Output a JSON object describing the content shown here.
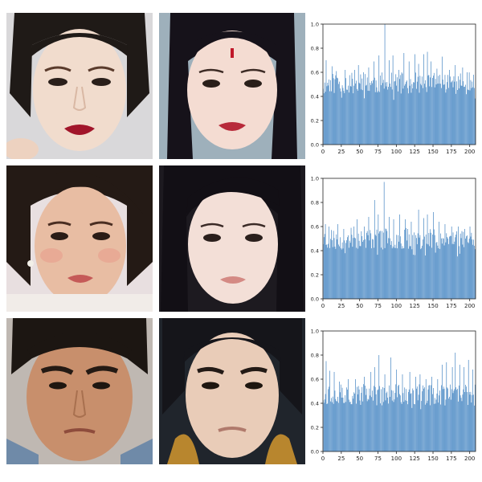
{
  "chart_data": [
    {
      "type": "bar",
      "x_ticks": [
        0,
        25,
        50,
        75,
        100,
        125,
        150,
        175,
        200
      ],
      "y_ticks": [
        "0.0",
        "0.2",
        "0.4",
        "0.6",
        "0.8",
        "1.0"
      ],
      "xlim": [
        0,
        208
      ],
      "ylim": [
        0,
        1.0
      ],
      "bar_color": "#3a7ebf",
      "n_bars": 208,
      "baseline": 0.51,
      "spread": 0.09,
      "peaks": [
        [
          4,
          0.7
        ],
        [
          12,
          0.65
        ],
        [
          18,
          0.61
        ],
        [
          30,
          0.62
        ],
        [
          43,
          0.62
        ],
        [
          48,
          0.66
        ],
        [
          55,
          0.6
        ],
        [
          62,
          0.64
        ],
        [
          69,
          0.69
        ],
        [
          76,
          0.74
        ],
        [
          84,
          1.0
        ],
        [
          90,
          0.7
        ],
        [
          95,
          0.74
        ],
        [
          103,
          0.62
        ],
        [
          110,
          0.76
        ],
        [
          117,
          0.69
        ],
        [
          125,
          0.75
        ],
        [
          130,
          0.67
        ],
        [
          137,
          0.75
        ],
        [
          142,
          0.77
        ],
        [
          147,
          0.69
        ],
        [
          155,
          0.63
        ],
        [
          162,
          0.73
        ],
        [
          172,
          0.62
        ],
        [
          180,
          0.66
        ],
        [
          190,
          0.64
        ],
        [
          196,
          0.6
        ],
        [
          205,
          0.58
        ]
      ],
      "seed": 11
    },
    {
      "type": "bar",
      "x_ticks": [
        0,
        25,
        50,
        75,
        100,
        125,
        150,
        175,
        200
      ],
      "y_ticks": [
        "0.0",
        "0.2",
        "0.4",
        "0.6",
        "0.8",
        "1.0"
      ],
      "xlim": [
        0,
        208
      ],
      "ylim": [
        0,
        1.0
      ],
      "bar_color": "#3a7ebf",
      "n_bars": 208,
      "baseline": 0.5,
      "spread": 0.09,
      "peaks": [
        [
          3,
          0.62
        ],
        [
          8,
          0.6
        ],
        [
          20,
          0.62
        ],
        [
          28,
          0.58
        ],
        [
          42,
          0.6
        ],
        [
          46,
          0.66
        ],
        [
          56,
          0.6
        ],
        [
          62,
          0.68
        ],
        [
          70,
          0.82
        ],
        [
          75,
          0.7
        ],
        [
          83,
          0.97
        ],
        [
          90,
          0.68
        ],
        [
          96,
          0.66
        ],
        [
          104,
          0.7
        ],
        [
          112,
          0.66
        ],
        [
          120,
          0.64
        ],
        [
          130,
          0.74
        ],
        [
          137,
          0.67
        ],
        [
          142,
          0.7
        ],
        [
          150,
          0.72
        ],
        [
          158,
          0.64
        ],
        [
          166,
          0.62
        ],
        [
          175,
          0.6
        ],
        [
          184,
          0.6
        ],
        [
          193,
          0.58
        ],
        [
          200,
          0.6
        ]
      ],
      "seed": 23
    },
    {
      "type": "bar",
      "x_ticks": [
        0,
        25,
        50,
        75,
        100,
        125,
        150,
        175,
        200
      ],
      "y_ticks": [
        "0.0",
        "0.2",
        "0.4",
        "0.6",
        "0.8",
        "1.0"
      ],
      "xlim": [
        0,
        208
      ],
      "ylim": [
        0,
        1.0
      ],
      "bar_color": "#3a7ebf",
      "n_bars": 208,
      "baseline": 0.47,
      "spread": 0.09,
      "peaks": [
        [
          4,
          0.75
        ],
        [
          9,
          0.67
        ],
        [
          15,
          0.66
        ],
        [
          22,
          0.58
        ],
        [
          34,
          0.6
        ],
        [
          44,
          0.6
        ],
        [
          56,
          0.62
        ],
        [
          65,
          0.66
        ],
        [
          70,
          0.7
        ],
        [
          76,
          0.8
        ],
        [
          84,
          0.64
        ],
        [
          92,
          0.78
        ],
        [
          100,
          0.68
        ],
        [
          108,
          0.64
        ],
        [
          118,
          0.66
        ],
        [
          126,
          0.62
        ],
        [
          132,
          0.64
        ],
        [
          140,
          0.6
        ],
        [
          148,
          0.62
        ],
        [
          156,
          0.6
        ],
        [
          162,
          0.72
        ],
        [
          168,
          0.74
        ],
        [
          176,
          0.7
        ],
        [
          180,
          0.82
        ],
        [
          186,
          0.72
        ],
        [
          192,
          0.7
        ],
        [
          198,
          0.76
        ],
        [
          204,
          0.68
        ]
      ],
      "seed": 37
    }
  ],
  "colors": {
    "skin_light": "#f0d8c8",
    "skin_warm": "#e4b69c",
    "skin_tan": "#c58e6c",
    "hair_dark": "#1c1714",
    "bg_photo": "#d7d6d8",
    "bg_render": "#9fb1bc"
  }
}
